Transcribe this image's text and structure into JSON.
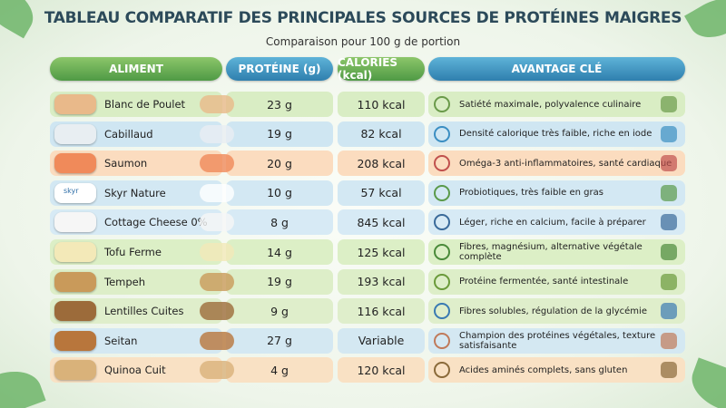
{
  "header": {
    "title": "TABLEAU COMPARATIF DES PRINCIPALES SOURCES DE PROTÉINES MAIGRES",
    "subtitle": "Comparaison pour 100 g de portion"
  },
  "table": {
    "columns": [
      "ALIMENT",
      "PROTÉINE (g)",
      "CALORIES (kcal)",
      "AVANTAGE CLÉ"
    ],
    "skyr_label": "skyr",
    "rows": [
      [
        "Blanc de Poulet",
        "23 g",
        "110 kcal",
        "Satiété maximale, polyvalence culinaire"
      ],
      [
        "Cabillaud",
        "19 g",
        "82 kcal",
        "Densité calorique très faible, riche en iode"
      ],
      [
        "Saumon",
        "20 g",
        "208 kcal",
        "Oméga-3 anti-inflammatoires, santé cardiaque"
      ],
      [
        "Skyr Nature",
        "10 g",
        "57 kcal",
        "Probiotiques, très faible en gras"
      ],
      [
        "Cottage Cheese 0%",
        "8 g",
        "845 kcal",
        "Léger, riche en calcium, facile à préparer"
      ],
      [
        "Tofu Ferme",
        "14 g",
        "125 kcal",
        "Fibres, magnésium, alternative végétale complète"
      ],
      [
        "Tempeh",
        "19 g",
        "193 kcal",
        "Protéine fermentée, santé intestinale"
      ],
      [
        "Lentilles Cuites",
        "9 g",
        "116 kcal",
        "Fibres solubles, régulation de la glycémie"
      ],
      [
        "Seitan",
        "27 g",
        "Variable",
        "Champion des protéines végétales, texture satisfaisante"
      ],
      [
        "Quinoa Cuit",
        "4 g",
        "120 kcal",
        "Acides aminés complets, sans gluten"
      ]
    ]
  }
}
